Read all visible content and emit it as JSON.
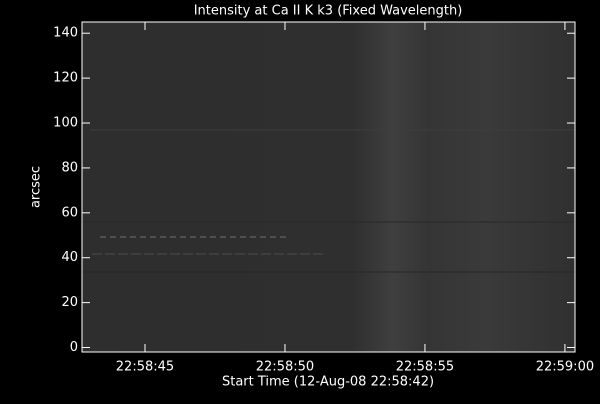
{
  "chart_data": {
    "type": "image",
    "title": "Intensity at Ca II K k3 (Fixed Wavelength)",
    "xlabel": "Start Time (12-Aug-08 22:58:42)",
    "ylabel": "arcsec",
    "xlim": [
      42.75,
      60.36
    ],
    "xticks": [
      {
        "value": 45,
        "label": "22:58:45"
      },
      {
        "value": 50,
        "label": "22:58:50"
      },
      {
        "value": 55,
        "label": "22:58:55"
      },
      {
        "value": 60,
        "label": "22:59:00"
      }
    ],
    "ylim": [
      -2,
      145
    ],
    "yticks": [
      0,
      20,
      40,
      60,
      80,
      100,
      120,
      140
    ]
  }
}
